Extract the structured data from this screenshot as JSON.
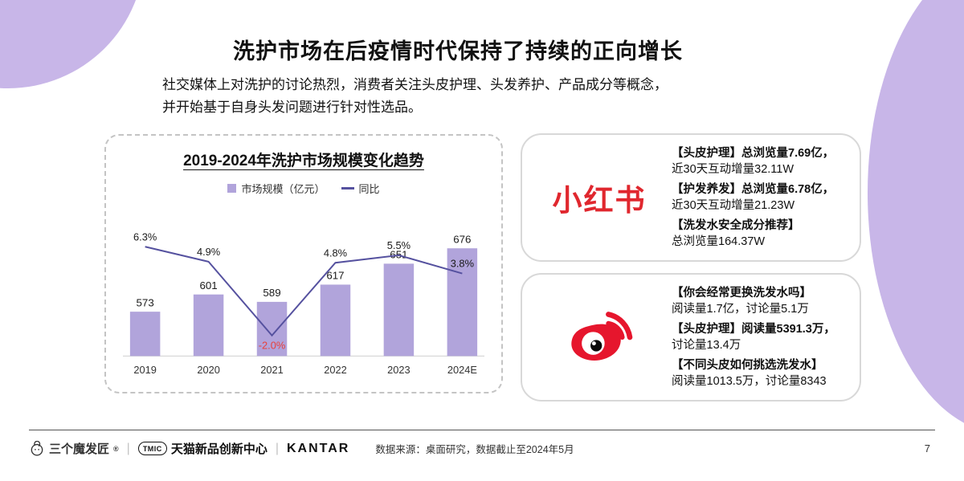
{
  "header": {
    "title": "洗护市场在后疫情时代保持了持续的正向增长",
    "subtitle_line1": "社交媒体上对洗护的讨论热烈，消费者关注头皮护理、头发养护、产品成分等概念，",
    "subtitle_line2": "并开始基于自身头发问题进行针对性选品。"
  },
  "chart": {
    "title": "2019-2024年洗护市场规模变化趋势",
    "legend": {
      "bar_label": "市场规模（亿元）",
      "line_label": "同比"
    }
  },
  "chart_data": {
    "type": "bar",
    "categories": [
      "2019",
      "2020",
      "2021",
      "2022",
      "2023",
      "2024E"
    ],
    "series": [
      {
        "name": "市场规模（亿元）",
        "type": "bar",
        "values": [
          573,
          601,
          589,
          617,
          651,
          676
        ]
      },
      {
        "name": "同比",
        "type": "line",
        "unit": "%",
        "values": [
          6.3,
          4.9,
          -2.0,
          4.8,
          5.5,
          3.8
        ]
      }
    ],
    "title": "2019-2024年洗护市场规模变化趋势",
    "xlabel": "",
    "ylabel": "",
    "legend_position": "top",
    "grid": false,
    "colors": {
      "bar": "#b1a4db",
      "line": "#55519f",
      "negative_label": "#e8413c"
    }
  },
  "xiaohongshu": {
    "logo_text": "小红书",
    "items": [
      {
        "line1": "【头皮护理】总浏览量7.69亿，",
        "line2": "近30天互动增量32.11W"
      },
      {
        "line1": "【护发养发】总浏览量6.78亿，",
        "line2": "近30天互动增量21.23W"
      },
      {
        "line1": "【洗发水安全成分推荐】",
        "line2": "总浏览量164.37W"
      }
    ]
  },
  "weibo": {
    "items": [
      {
        "line1": "【你会经常更换洗发水吗】",
        "line2": "阅读量1.7亿，讨论量5.1万"
      },
      {
        "line1": "【头皮护理】阅读量5391.3万，",
        "line2": "讨论量13.4万"
      },
      {
        "line1": "【不同头皮如何挑选洗发水】",
        "line2": "阅读量1013.5万，讨论量8343"
      }
    ]
  },
  "footer": {
    "brand1": "三个魔发匠",
    "brand1_reg": "®",
    "brand2_mark": "TMIC",
    "brand2": "天猫新品创新中心",
    "brand3": "KANTAR",
    "separator": "|",
    "source": "数据来源：桌面研究，数据截止至2024年5月",
    "page_number": "7"
  }
}
